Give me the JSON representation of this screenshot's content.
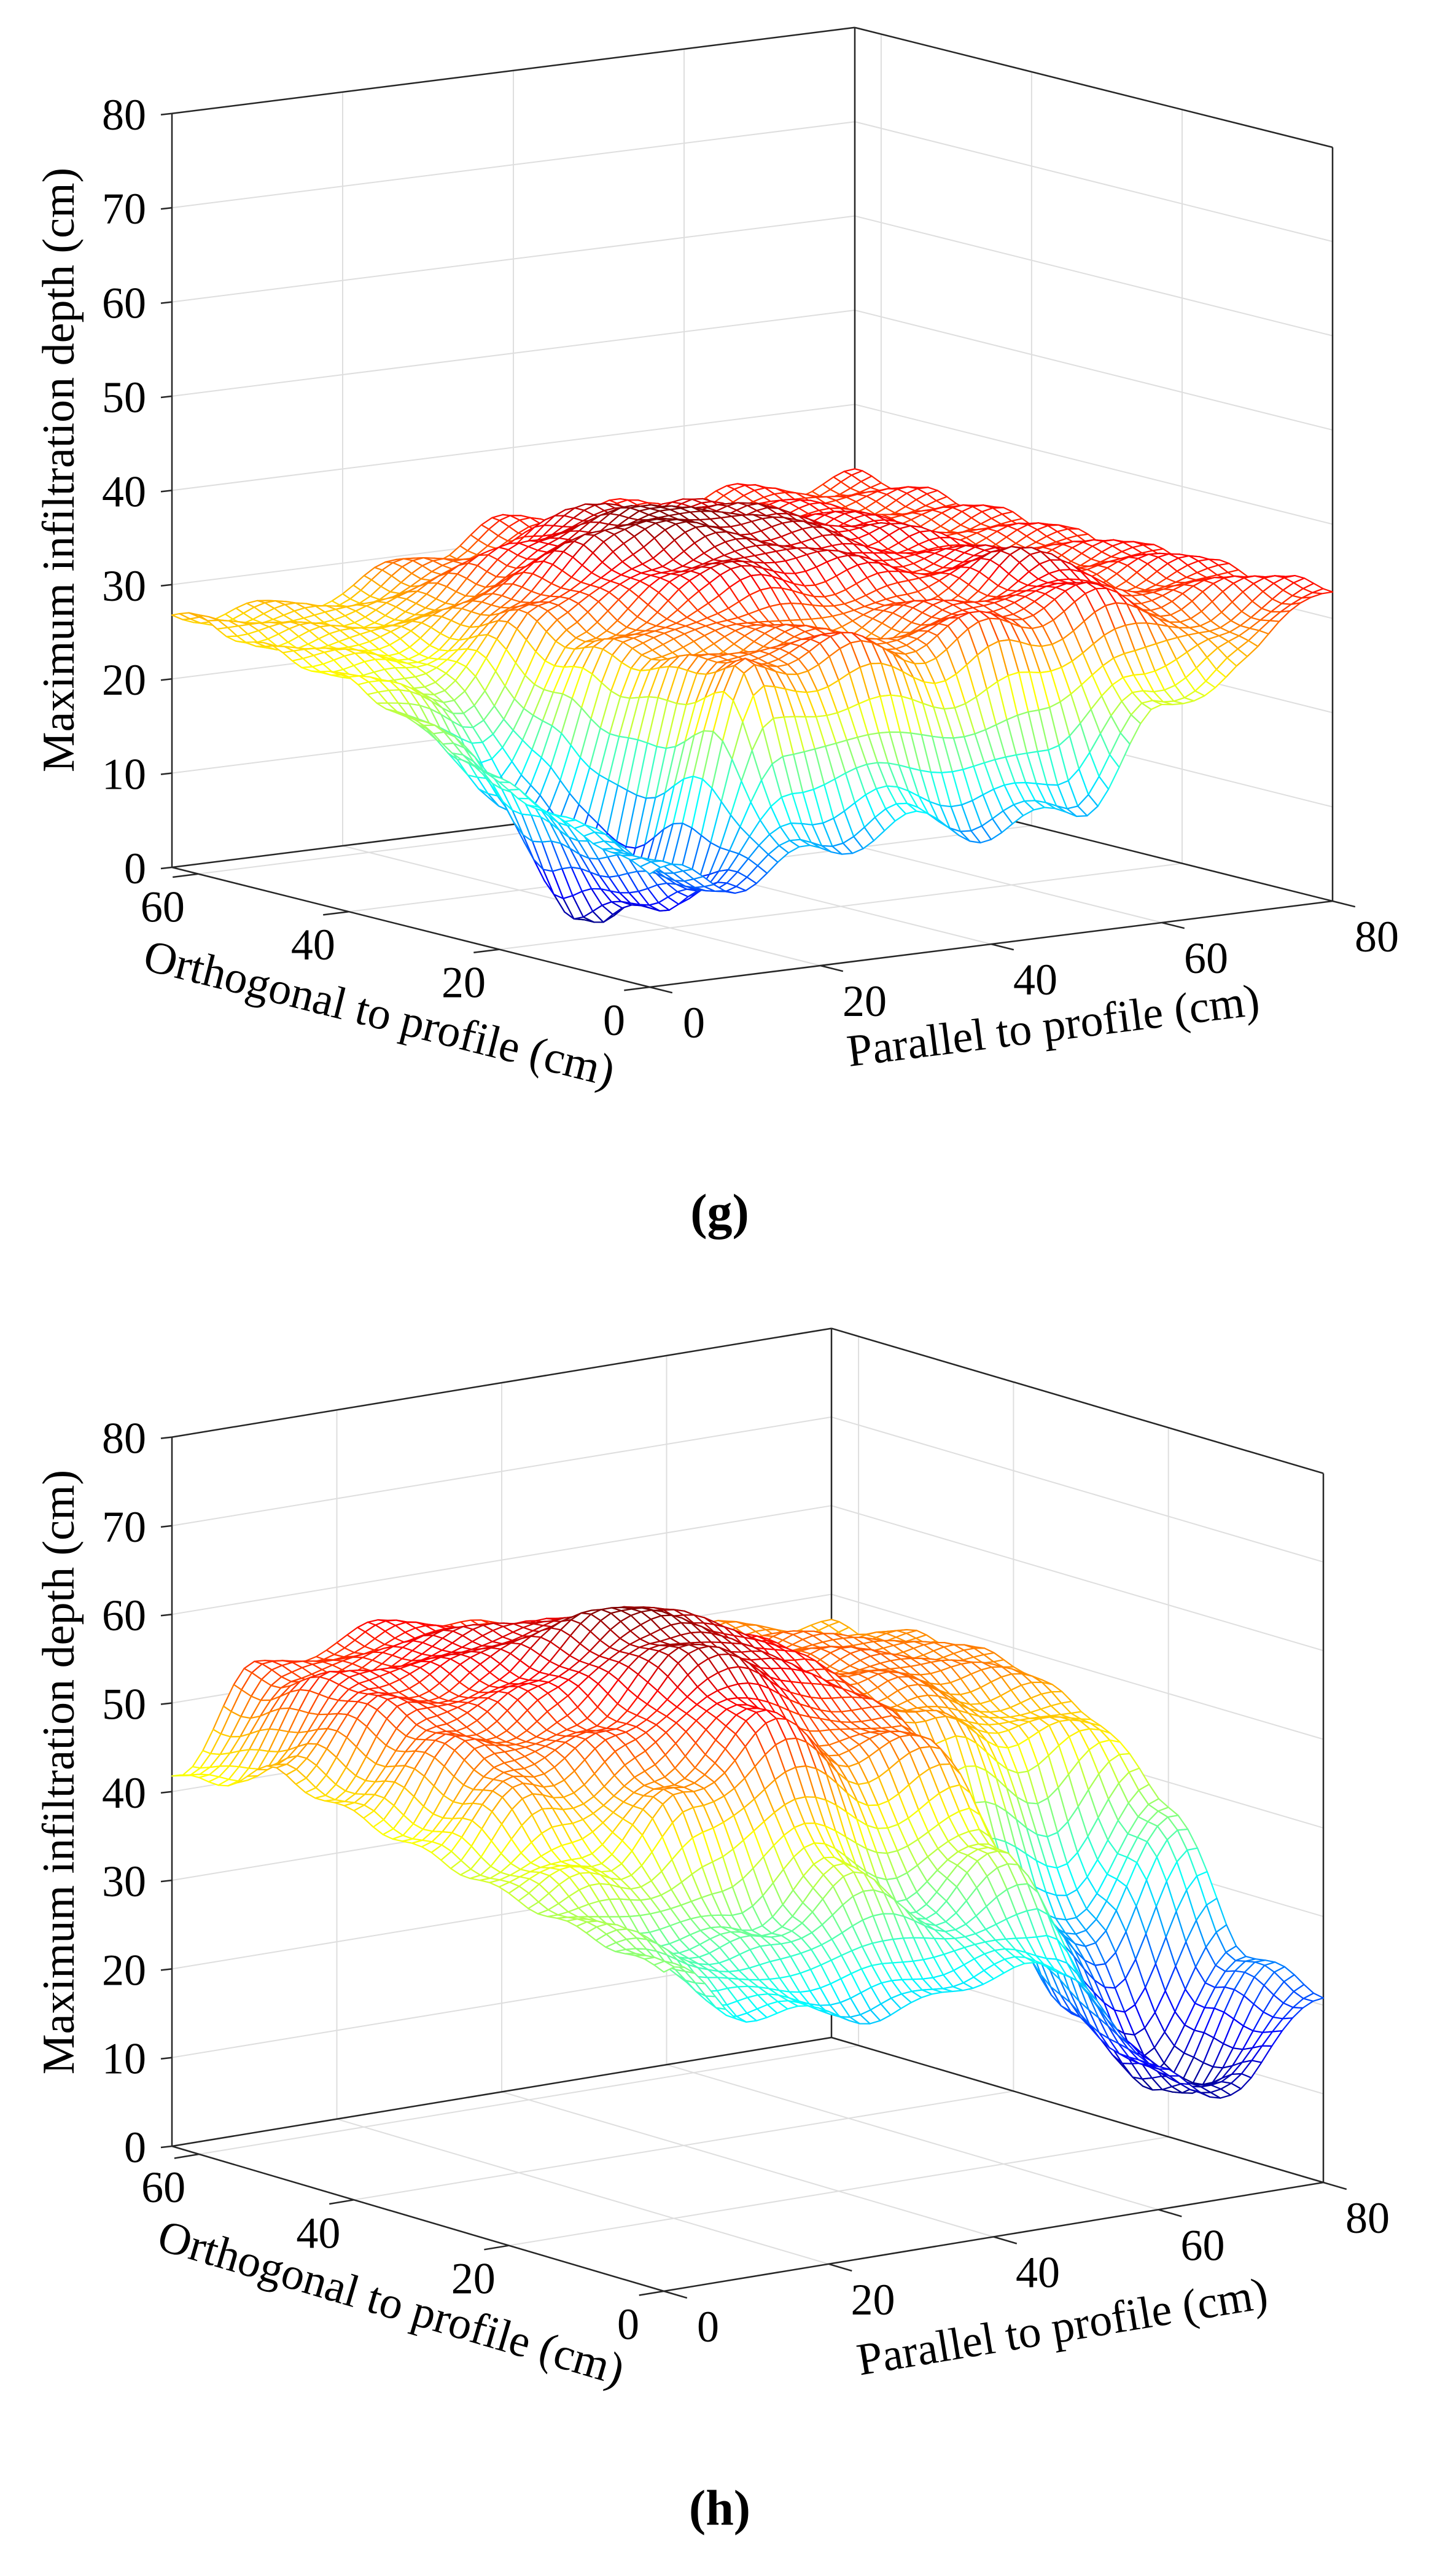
{
  "chart_data": [
    {
      "type": "surface",
      "panel_label": "(g)",
      "zlabel": "Maximum infiltration depth (cm)",
      "xlabel": "Parallel to profile (cm)",
      "ylabel": "Orthogonal to profile (cm)",
      "xlim": [
        0,
        80
      ],
      "ylim": [
        0,
        63.5
      ],
      "zlim": [
        0,
        80
      ],
      "x_ticks": [
        "0",
        "20",
        "40",
        "60",
        "80"
      ],
      "y_ticks": [
        "0",
        "20",
        "40",
        "60"
      ],
      "z_ticks": [
        "0",
        "10",
        "20",
        "30",
        "40",
        "50",
        "60",
        "70",
        "80"
      ],
      "colormap": "jet",
      "grid": true,
      "x_grid": [
        0,
        10,
        20,
        30,
        40,
        50,
        60,
        70,
        80
      ],
      "y_grid": [
        0,
        10,
        20,
        30,
        40,
        50,
        60
      ],
      "z": [
        [
          12,
          10,
          12,
          14,
          12,
          13,
          22,
          27,
          34
        ],
        [
          15,
          6,
          30,
          31,
          30,
          32,
          33,
          31,
          33
        ],
        [
          18,
          2,
          28,
          30,
          29,
          31,
          35,
          32,
          33
        ],
        [
          22,
          12,
          28,
          34,
          36,
          34,
          33,
          32,
          32
        ],
        [
          25,
          22,
          30,
          37,
          38,
          36,
          34,
          32,
          32
        ],
        [
          26,
          25,
          28,
          34,
          36,
          35,
          33,
          32,
          32
        ],
        [
          27,
          26,
          27,
          30,
          32,
          32,
          32,
          32,
          32
        ]
      ]
    },
    {
      "type": "surface",
      "panel_label": "(h)",
      "zlabel": "Maximum infiltration depth (cm)",
      "xlabel": "Parallel to profile (cm)",
      "ylabel": "Orthogonal to profile (cm)",
      "xlim": [
        0,
        80
      ],
      "ylim": [
        0,
        63.5
      ],
      "zlim": [
        0,
        80
      ],
      "x_ticks": [
        "0",
        "20",
        "40",
        "60",
        "80"
      ],
      "y_ticks": [
        "0",
        "20",
        "40",
        "60"
      ],
      "z_ticks": [
        "0",
        "10",
        "20",
        "30",
        "40",
        "50",
        "60",
        "70",
        "80"
      ],
      "colormap": "jet",
      "grid": true,
      "x_grid": [
        0,
        10,
        20,
        30,
        40,
        50,
        60,
        70,
        80
      ],
      "y_grid": [
        0,
        10,
        20,
        30,
        40,
        50,
        60
      ],
      "z": [
        [
          36,
          30,
          28,
          27,
          30,
          28,
          15,
          12,
          22
        ],
        [
          38,
          35,
          34,
          40,
          35,
          40,
          18,
          10,
          24
        ],
        [
          40,
          42,
          48,
          55,
          50,
          50,
          30,
          25,
          38
        ],
        [
          42,
          50,
          52,
          60,
          58,
          52,
          48,
          45,
          45
        ],
        [
          44,
          52,
          55,
          62,
          60,
          55,
          50,
          50,
          48
        ],
        [
          46,
          54,
          56,
          58,
          56,
          52,
          50,
          50,
          48
        ],
        [
          42,
          52,
          54,
          55,
          52,
          50,
          48,
          48,
          46
        ]
      ]
    }
  ]
}
